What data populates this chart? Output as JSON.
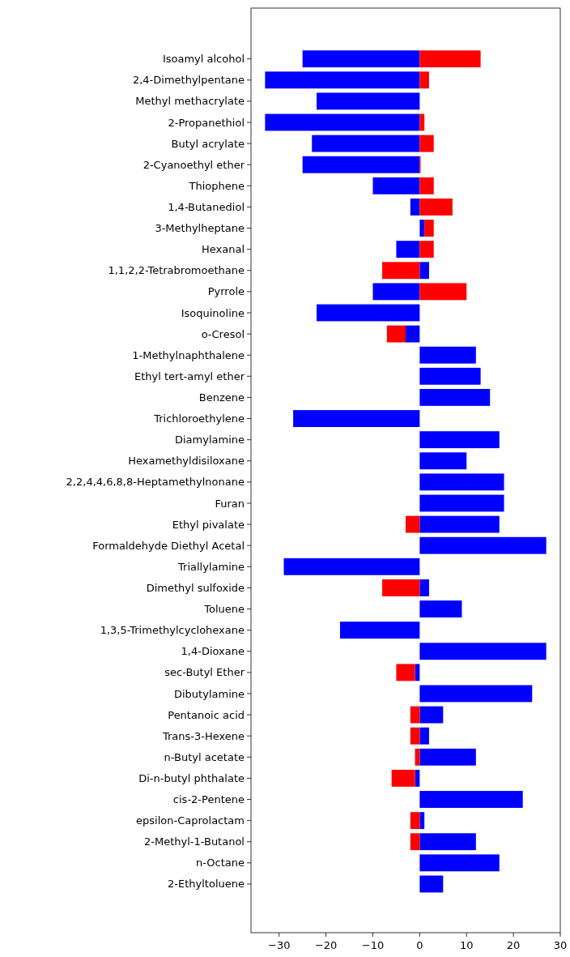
{
  "chart_data": {
    "type": "bar",
    "orientation": "horizontal",
    "categories": [
      "Isoamyl alcohol",
      "2,4-Dimethylpentane",
      "Methyl methacrylate",
      "2-Propanethiol",
      "Butyl acrylate",
      "2-Cyanoethyl ether",
      "Thiophene",
      "1,4-Butanediol",
      "3-Methylheptane",
      "Hexanal",
      "1,1,2,2-Tetrabromoethane",
      "Pyrrole",
      "Isoquinoline",
      "o-Cresol",
      "1-Methylnaphthalene",
      "Ethyl tert-amyl ether",
      "Benzene",
      "Trichloroethylene",
      "Diamylamine",
      "Hexamethyldisiloxane",
      "2,2,4,4,6,8,8-Heptamethylnonane",
      "Furan",
      "Ethyl pivalate",
      "Formaldehyde Diethyl Acetal",
      "Triallylamine",
      "Dimethyl sulfoxide",
      "Toluene",
      "1,3,5-Trimethylcyclohexane",
      "1,4-Dioxane",
      "sec-Butyl Ether",
      "Dibutylamine",
      "Pentanoic acid",
      "Trans-3-Hexene",
      "n-Butyl acetate",
      "Di-n-butyl phthalate",
      "cis-2-Pentene",
      "epsilon-Caprolactam",
      "2-Methyl-1-Butanol",
      "n-Octane",
      "2-Ethyltoluene"
    ],
    "stacked": true,
    "series": [
      {
        "color": "#0000ff",
        "values": [
          -25,
          -33,
          -22,
          -33,
          -23,
          -25,
          -10,
          -2,
          1,
          -5,
          2,
          -10,
          -22,
          -3,
          12,
          13,
          15,
          -27,
          17,
          10,
          18,
          18,
          17,
          27,
          -29,
          2,
          9,
          -17,
          27,
          -1,
          24,
          5,
          2,
          12,
          -1,
          22,
          1,
          12,
          17,
          5
        ]
      },
      {
        "color": "#ff0000",
        "values": [
          13,
          2,
          null,
          1,
          3,
          0.2,
          3,
          7,
          2,
          3,
          -8,
          10,
          null,
          -4,
          null,
          null,
          null,
          null,
          null,
          null,
          null,
          null,
          -3,
          null,
          null,
          -8,
          null,
          null,
          null,
          -4,
          null,
          -2,
          -2,
          -1,
          -5,
          null,
          -2,
          -2,
          null,
          null
        ]
      }
    ],
    "xlim": [
      -36,
      30
    ],
    "xticks": [
      {
        "value": -30,
        "label": "−30"
      },
      {
        "value": -20,
        "label": "−20"
      },
      {
        "value": -10,
        "label": "−10"
      },
      0,
      10,
      20,
      30
    ],
    "grid": false
  }
}
